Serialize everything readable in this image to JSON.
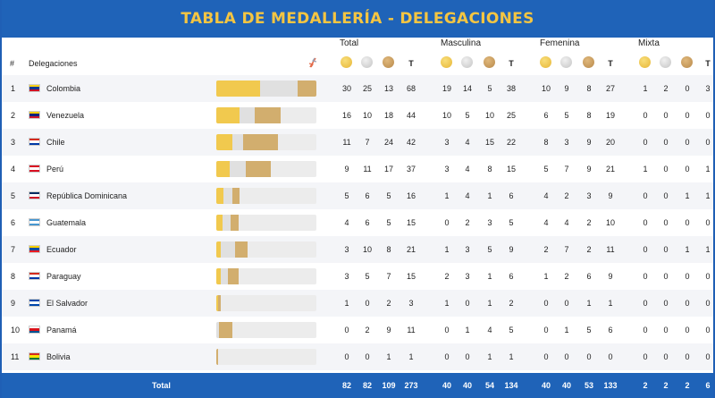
{
  "title": "TABLA DE MEDALLERÍA - DELEGACIONES",
  "groups": [
    "Total",
    "Masculina",
    "Femenina",
    "Mixta"
  ],
  "headers": {
    "rank": "#",
    "delegation": "Delegaciones",
    "t": "T"
  },
  "medal_icons": [
    "gold-medal-icon",
    "silver-medal-icon",
    "bronze-medal-icon"
  ],
  "colors": {
    "header_blue": "#1f63b8",
    "title_yellow": "#f4c542",
    "gold": "#f1c94e",
    "silver": "#e0e0e0",
    "bronze": "#d2ae6e"
  },
  "rows": [
    {
      "rank": "1",
      "name": "Colombia",
      "flag": [
        "#fcd116",
        "#003893",
        "#ce1126"
      ],
      "total": [
        "30",
        "25",
        "13",
        "68"
      ],
      "masc": [
        "19",
        "14",
        "5",
        "38"
      ],
      "fem": [
        "10",
        "9",
        "8",
        "27"
      ],
      "mixta": [
        "1",
        "2",
        "0",
        "3"
      ]
    },
    {
      "rank": "2",
      "name": "Venezuela",
      "flag": [
        "#ffcc00",
        "#00247d",
        "#cf142b"
      ],
      "total": [
        "16",
        "10",
        "18",
        "44"
      ],
      "masc": [
        "10",
        "5",
        "10",
        "25"
      ],
      "fem": [
        "6",
        "5",
        "8",
        "19"
      ],
      "mixta": [
        "0",
        "0",
        "0",
        "0"
      ]
    },
    {
      "rank": "3",
      "name": "Chile",
      "flag": [
        "#d52b1e",
        "#ffffff",
        "#0039a6"
      ],
      "total": [
        "11",
        "7",
        "24",
        "42"
      ],
      "masc": [
        "3",
        "4",
        "15",
        "22"
      ],
      "fem": [
        "8",
        "3",
        "9",
        "20"
      ],
      "mixta": [
        "0",
        "0",
        "0",
        "0"
      ]
    },
    {
      "rank": "4",
      "name": "Perú",
      "flag": [
        "#d91023",
        "#ffffff",
        "#d91023"
      ],
      "total": [
        "9",
        "11",
        "17",
        "37"
      ],
      "masc": [
        "3",
        "4",
        "8",
        "15"
      ],
      "fem": [
        "5",
        "7",
        "9",
        "21"
      ],
      "mixta": [
        "1",
        "0",
        "0",
        "1"
      ]
    },
    {
      "rank": "5",
      "name": "República Dominicana",
      "flag": [
        "#002d62",
        "#ffffff",
        "#ce1126"
      ],
      "total": [
        "5",
        "6",
        "5",
        "16"
      ],
      "masc": [
        "1",
        "4",
        "1",
        "6"
      ],
      "fem": [
        "4",
        "2",
        "3",
        "9"
      ],
      "mixta": [
        "0",
        "0",
        "1",
        "1"
      ]
    },
    {
      "rank": "6",
      "name": "Guatemala",
      "flag": [
        "#4997d0",
        "#ffffff",
        "#4997d0"
      ],
      "total": [
        "4",
        "6",
        "5",
        "15"
      ],
      "masc": [
        "0",
        "2",
        "3",
        "5"
      ],
      "fem": [
        "4",
        "4",
        "2",
        "10"
      ],
      "mixta": [
        "0",
        "0",
        "0",
        "0"
      ]
    },
    {
      "rank": "7",
      "name": "Ecuador",
      "flag": [
        "#ffd100",
        "#034ea2",
        "#ed1c24"
      ],
      "total": [
        "3",
        "10",
        "8",
        "21"
      ],
      "masc": [
        "1",
        "3",
        "5",
        "9"
      ],
      "fem": [
        "2",
        "7",
        "2",
        "11"
      ],
      "mixta": [
        "0",
        "0",
        "1",
        "1"
      ]
    },
    {
      "rank": "8",
      "name": "Paraguay",
      "flag": [
        "#d52b1e",
        "#ffffff",
        "#0038a8"
      ],
      "total": [
        "3",
        "5",
        "7",
        "15"
      ],
      "masc": [
        "2",
        "3",
        "1",
        "6"
      ],
      "fem": [
        "1",
        "2",
        "6",
        "9"
      ],
      "mixta": [
        "0",
        "0",
        "0",
        "0"
      ]
    },
    {
      "rank": "9",
      "name": "El Salvador",
      "flag": [
        "#0047ab",
        "#ffffff",
        "#0047ab"
      ],
      "total": [
        "1",
        "0",
        "2",
        "3"
      ],
      "masc": [
        "1",
        "0",
        "1",
        "2"
      ],
      "fem": [
        "0",
        "0",
        "1",
        "1"
      ],
      "mixta": [
        "0",
        "0",
        "0",
        "0"
      ]
    },
    {
      "rank": "10",
      "name": "Panamá",
      "flag": [
        "#ffffff",
        "#da121a",
        "#005293"
      ],
      "total": [
        "0",
        "2",
        "9",
        "11"
      ],
      "masc": [
        "0",
        "1",
        "4",
        "5"
      ],
      "fem": [
        "0",
        "1",
        "5",
        "6"
      ],
      "mixta": [
        "0",
        "0",
        "0",
        "0"
      ]
    },
    {
      "rank": "11",
      "name": "Bolivia",
      "flag": [
        "#d52b1e",
        "#f9e300",
        "#007934"
      ],
      "total": [
        "0",
        "0",
        "1",
        "1"
      ],
      "masc": [
        "0",
        "0",
        "1",
        "1"
      ],
      "fem": [
        "0",
        "0",
        "0",
        "0"
      ],
      "mixta": [
        "0",
        "0",
        "0",
        "0"
      ]
    }
  ],
  "footer": {
    "label": "Total",
    "total": [
      "82",
      "82",
      "109",
      "273"
    ],
    "masc": [
      "40",
      "40",
      "54",
      "134"
    ],
    "fem": [
      "40",
      "40",
      "53",
      "133"
    ],
    "mixta": [
      "2",
      "2",
      "2",
      "6"
    ]
  }
}
